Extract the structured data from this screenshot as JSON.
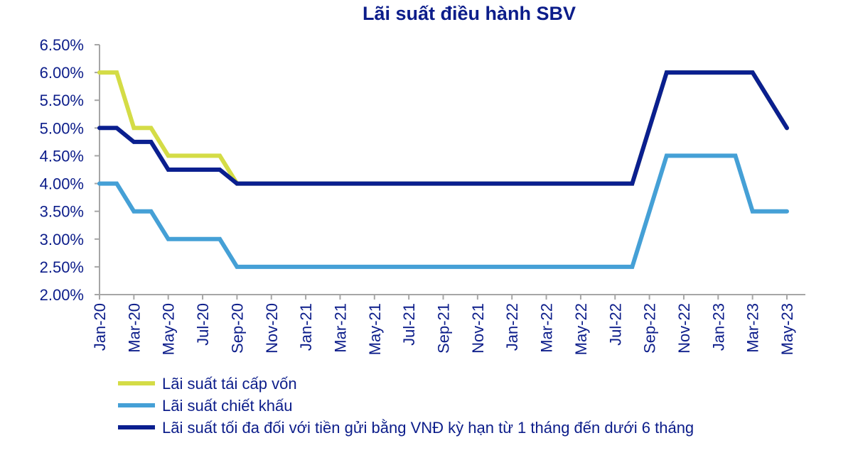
{
  "chart_data": {
    "type": "line",
    "title": "Lãi suất điều hành SBV",
    "xlabel": "",
    "ylabel": "",
    "ylim": [
      2.0,
      6.5
    ],
    "y_ticks": [
      "2.00%",
      "2.50%",
      "3.00%",
      "3.50%",
      "4.00%",
      "4.50%",
      "5.00%",
      "5.50%",
      "6.00%",
      "6.50%"
    ],
    "x": [
      "Jan-20",
      "Feb-20",
      "Mar-20",
      "Apr-20",
      "May-20",
      "Jun-20",
      "Jul-20",
      "Aug-20",
      "Sep-20",
      "Oct-20",
      "Nov-20",
      "Dec-20",
      "Jan-21",
      "Feb-21",
      "Mar-21",
      "Apr-21",
      "May-21",
      "Jun-21",
      "Jul-21",
      "Aug-21",
      "Sep-21",
      "Oct-21",
      "Nov-21",
      "Dec-21",
      "Jan-22",
      "Feb-22",
      "Mar-22",
      "Apr-22",
      "May-22",
      "Jun-22",
      "Jul-22",
      "Aug-22",
      "Sep-22",
      "Oct-22",
      "Nov-22",
      "Dec-22",
      "Jan-23",
      "Feb-23",
      "Mar-23",
      "Apr-23",
      "May-23"
    ],
    "x_tick_labels": [
      "Jan-20",
      "Mar-20",
      "May-20",
      "Jul-20",
      "Sep-20",
      "Nov-20",
      "Jan-21",
      "Mar-21",
      "May-21",
      "Jul-21",
      "Sep-21",
      "Nov-21",
      "Jan-22",
      "Mar-22",
      "May-22",
      "Jul-22",
      "Sep-22",
      "Nov-22",
      "Jan-23",
      "Mar-23",
      "May-23"
    ],
    "grid": false,
    "legend_placement": "bottom-left",
    "series": [
      {
        "name": "Lãi suất tái cấp vốn",
        "color": "#d4dc46",
        "values": [
          6.0,
          6.0,
          5.0,
          5.0,
          4.5,
          4.5,
          4.5,
          4.5,
          4.0,
          4.0,
          4.0,
          4.0,
          4.0,
          4.0,
          4.0,
          4.0,
          4.0,
          4.0,
          4.0,
          4.0,
          4.0,
          4.0,
          4.0,
          4.0,
          4.0,
          4.0,
          4.0,
          4.0,
          4.0,
          4.0,
          4.0,
          4.0,
          5.0,
          6.0,
          6.0,
          6.0,
          6.0,
          6.0,
          6.0,
          5.5,
          5.0
        ]
      },
      {
        "name": "Lãi suất chiết khấu",
        "color": "#45a0d6",
        "values": [
          4.0,
          4.0,
          3.5,
          3.5,
          3.0,
          3.0,
          3.0,
          3.0,
          2.5,
          2.5,
          2.5,
          2.5,
          2.5,
          2.5,
          2.5,
          2.5,
          2.5,
          2.5,
          2.5,
          2.5,
          2.5,
          2.5,
          2.5,
          2.5,
          2.5,
          2.5,
          2.5,
          2.5,
          2.5,
          2.5,
          2.5,
          2.5,
          3.5,
          4.5,
          4.5,
          4.5,
          4.5,
          4.5,
          3.5,
          3.5,
          3.5
        ]
      },
      {
        "name": "Lãi suất tối đa đối với tiền gửi bằng VNĐ kỳ hạn từ 1 tháng đến dưới 6 tháng",
        "color": "#0a1f8f",
        "values": [
          5.0,
          5.0,
          4.75,
          4.75,
          4.25,
          4.25,
          4.25,
          4.25,
          4.0,
          4.0,
          4.0,
          4.0,
          4.0,
          4.0,
          4.0,
          4.0,
          4.0,
          4.0,
          4.0,
          4.0,
          4.0,
          4.0,
          4.0,
          4.0,
          4.0,
          4.0,
          4.0,
          4.0,
          4.0,
          4.0,
          4.0,
          4.0,
          5.0,
          6.0,
          6.0,
          6.0,
          6.0,
          6.0,
          6.0,
          5.5,
          5.0
        ]
      }
    ]
  }
}
